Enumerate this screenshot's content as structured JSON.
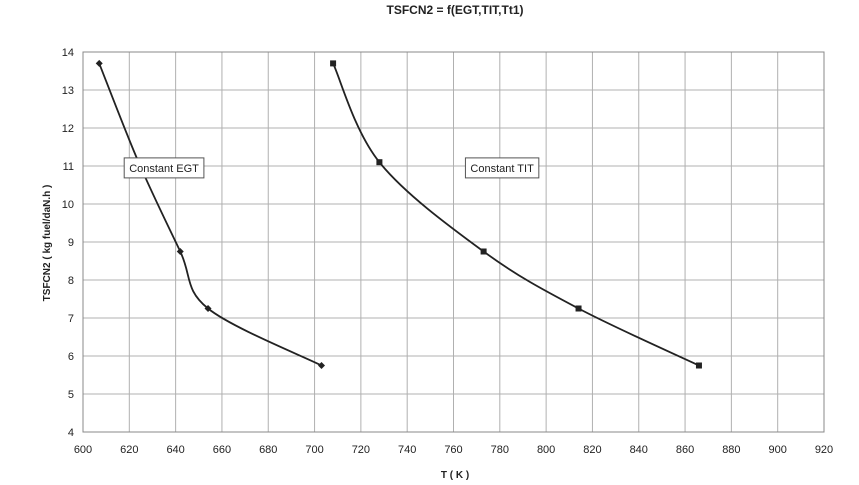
{
  "chart_data": {
    "type": "line",
    "title": "TSFCN2 = f(EGT,TIT,Tt1)",
    "xlabel": "T ( K )",
    "ylabel": "TSFCN2 ( kg fuel/daN.h )",
    "xlim": [
      600,
      920
    ],
    "ylim": [
      4,
      14
    ],
    "x_ticks": [
      600,
      620,
      640,
      660,
      680,
      700,
      720,
      740,
      760,
      780,
      800,
      820,
      840,
      860,
      880,
      900,
      920
    ],
    "y_ticks": [
      4,
      5,
      6,
      7,
      8,
      9,
      10,
      11,
      12,
      13,
      14
    ],
    "grid": true,
    "legend": "none",
    "series": [
      {
        "marker": "diamond",
        "color": "#222222",
        "points": [
          {
            "x": 607,
            "y": 13.7
          },
          {
            "x": 624,
            "y": 11.1
          },
          {
            "x": 642,
            "y": 8.75
          },
          {
            "x": 654,
            "y": 7.25
          },
          {
            "x": 703,
            "y": 5.75
          }
        ]
      },
      {
        "marker": "square",
        "color": "#222222",
        "points": [
          {
            "x": 708,
            "y": 13.7
          },
          {
            "x": 728,
            "y": 11.1
          },
          {
            "x": 773,
            "y": 8.75
          },
          {
            "x": 814,
            "y": 7.25
          },
          {
            "x": 866,
            "y": 5.75
          }
        ]
      }
    ],
    "annotations": [
      {
        "text": "Constant EGT",
        "x": 635,
        "y": 10.95
      },
      {
        "text": "Constant TIT",
        "x": 781,
        "y": 10.95
      }
    ]
  }
}
